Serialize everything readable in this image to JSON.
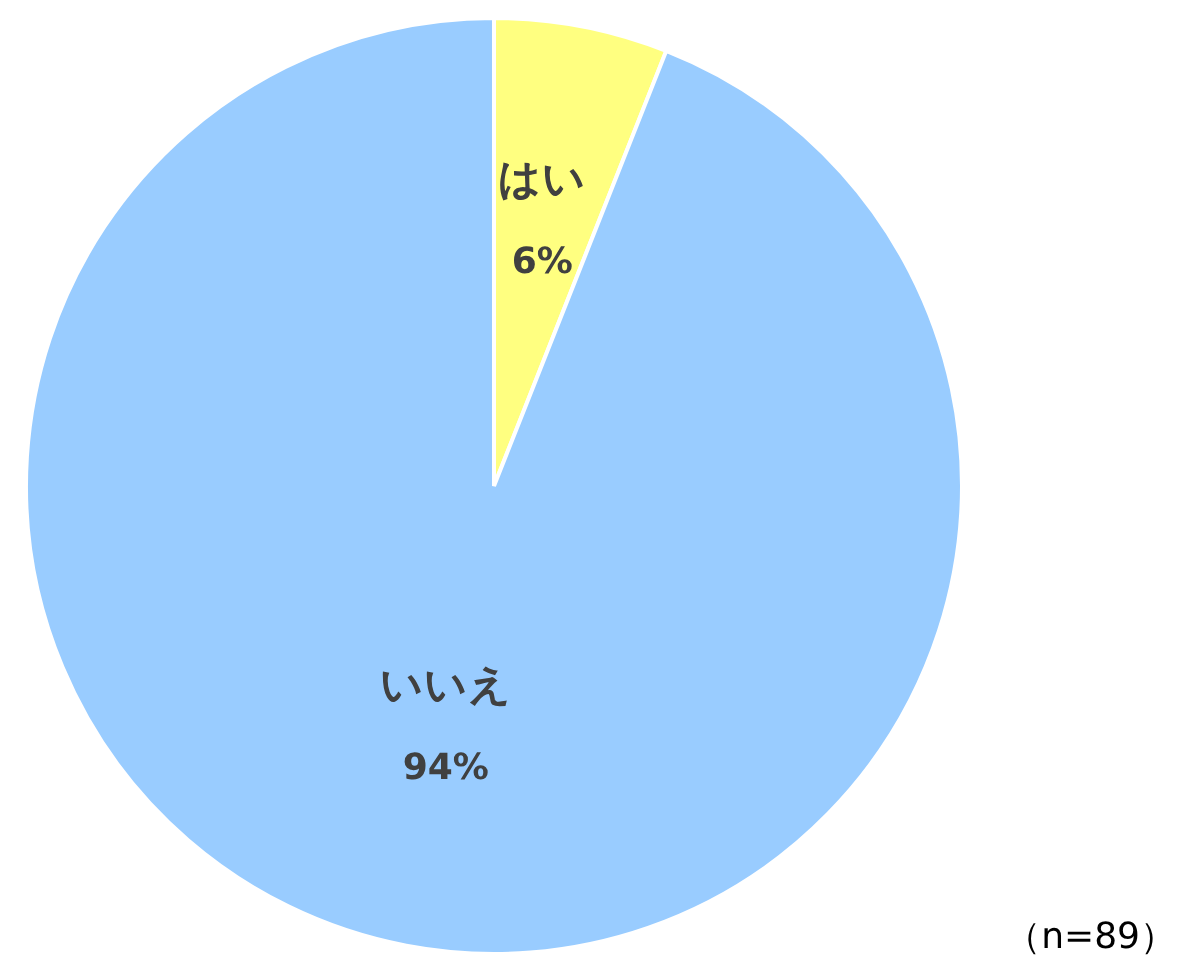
{
  "chart_data": {
    "type": "pie",
    "categories": [
      "はい",
      "いいえ"
    ],
    "values": [
      6,
      94
    ],
    "colors": [
      "#ffff80",
      "#99ccff"
    ],
    "value_labels": [
      "6%",
      "94%"
    ],
    "annotations": [
      "（n=89）"
    ]
  }
}
